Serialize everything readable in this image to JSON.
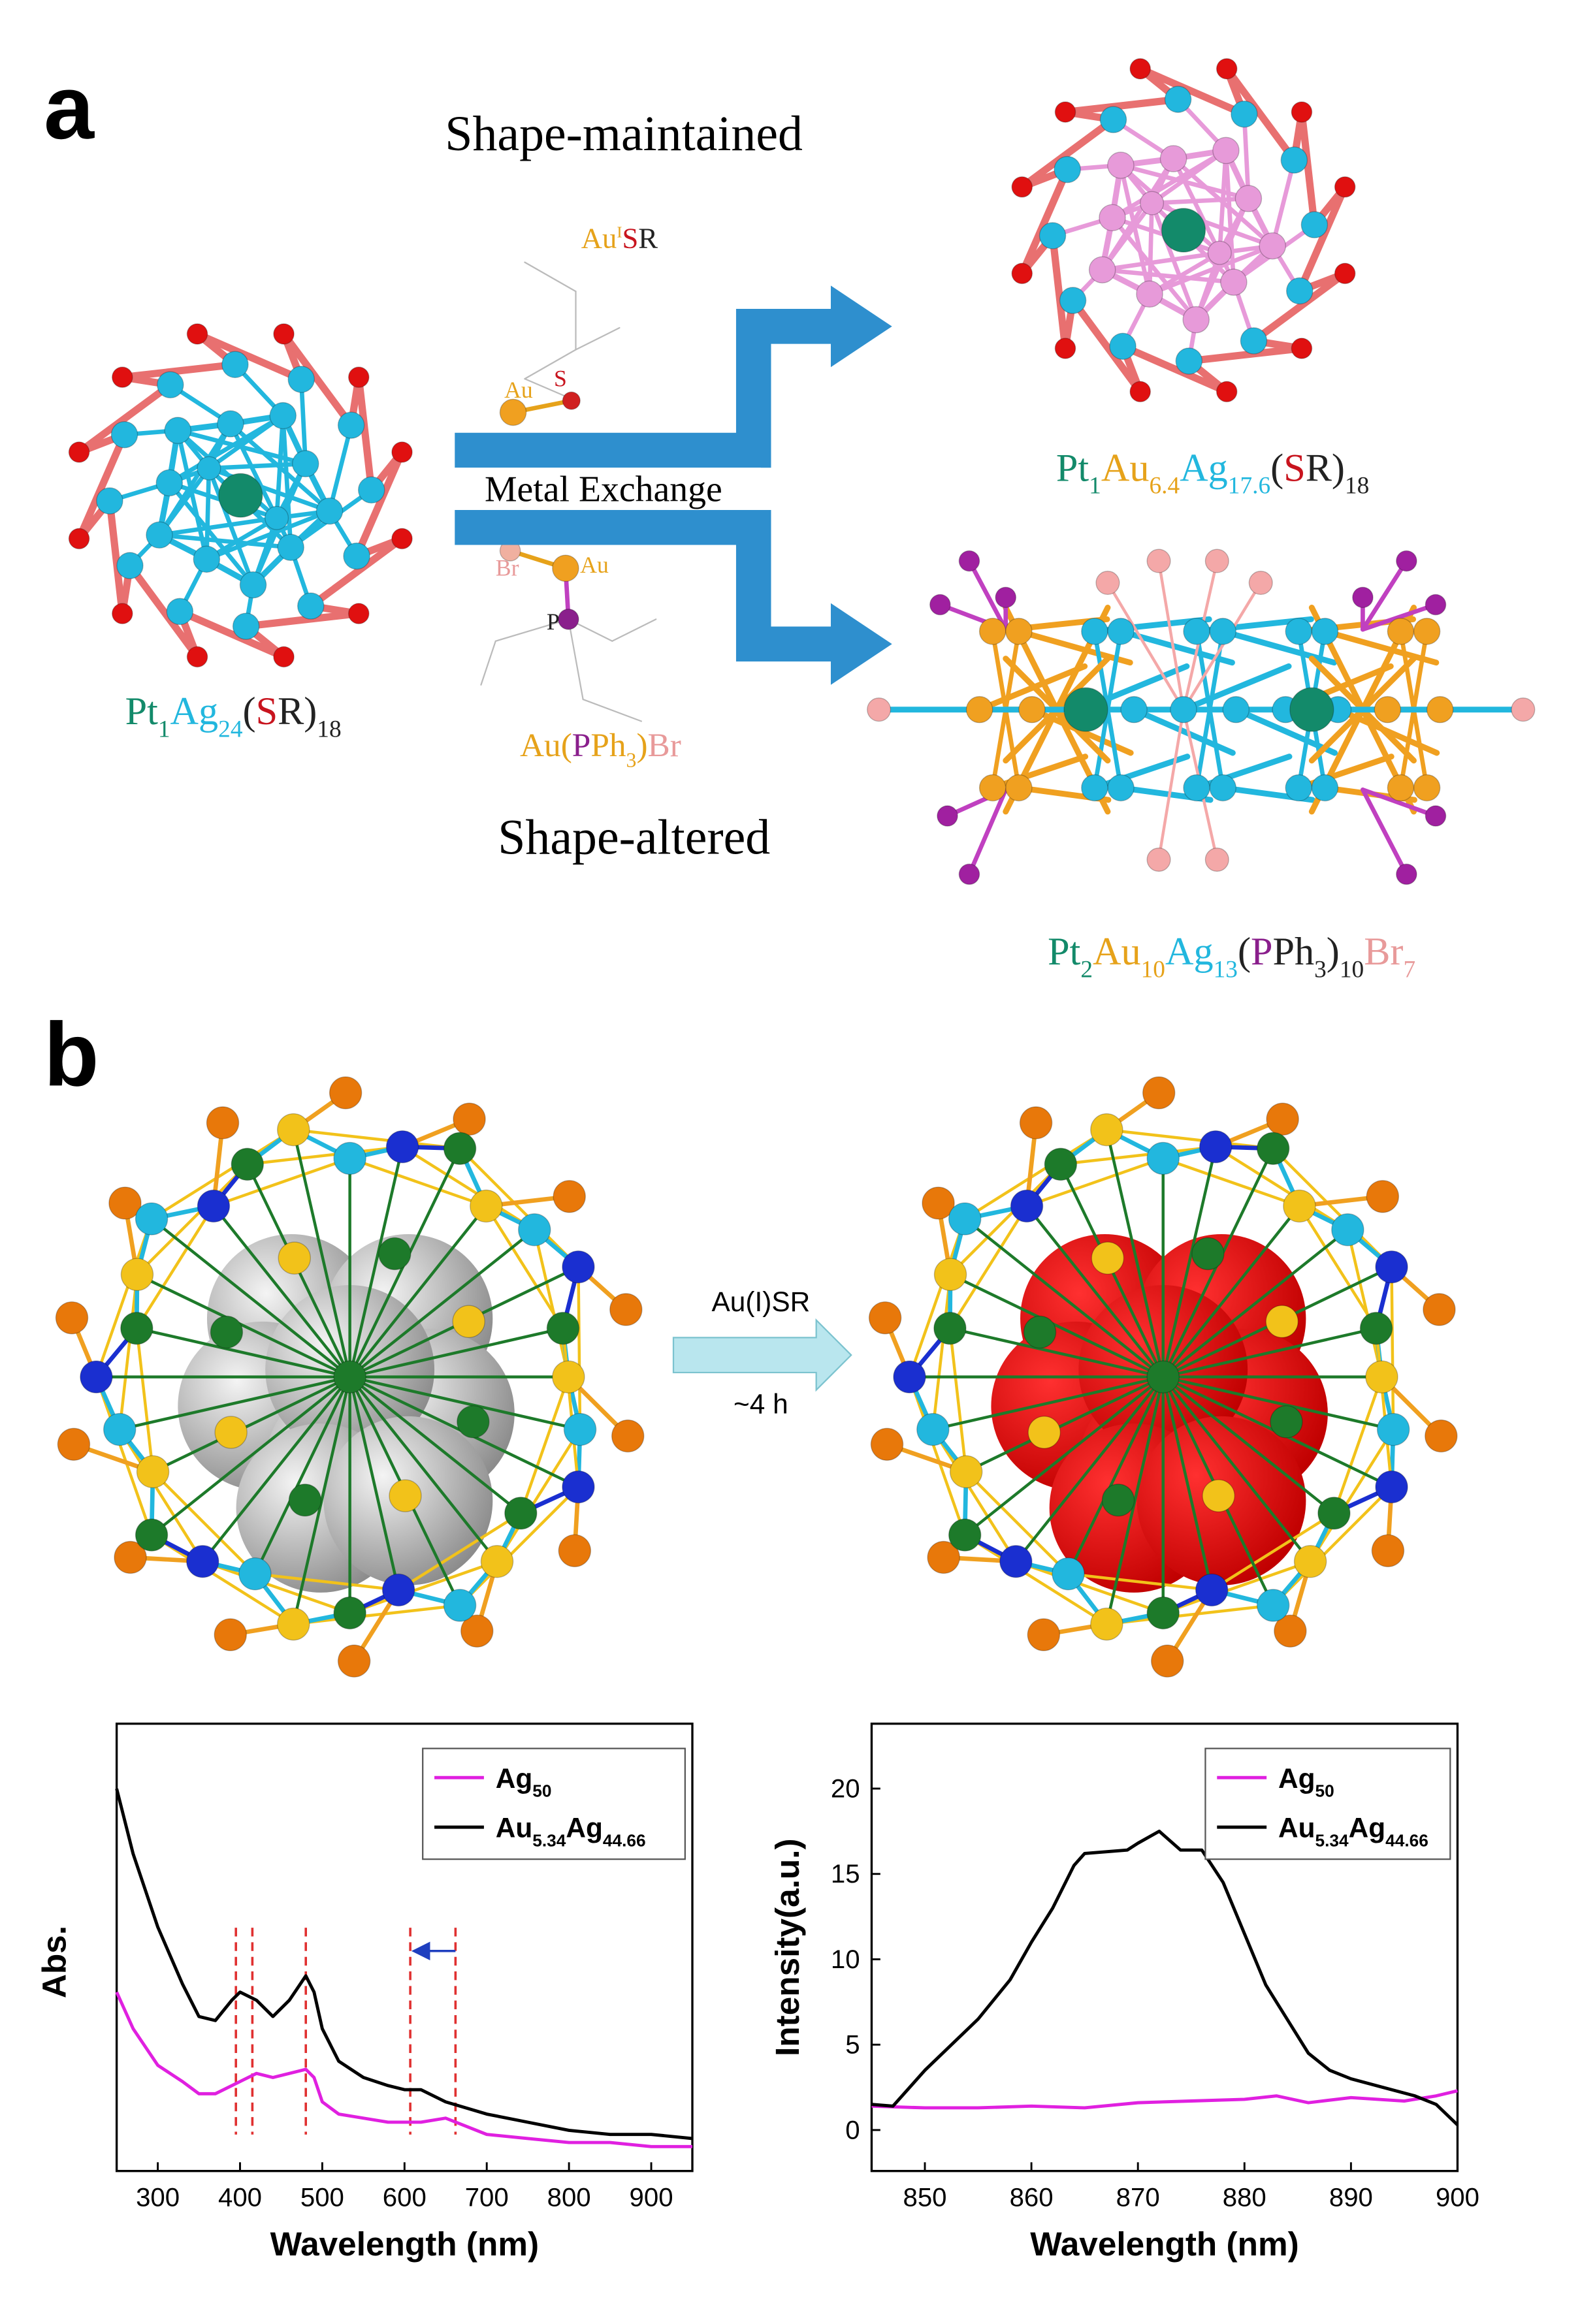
{
  "panel_a": {
    "label": "a",
    "top_title": "Shape-maintained",
    "bottom_title": "Shape-altered",
    "arrow_label": "Metal Exchange",
    "reagent_1": [
      {
        "text": "Au",
        "sup": "I",
        "color": "#e6a21a"
      },
      {
        "text": "S",
        "color": "#c8141e"
      },
      {
        "text": "R",
        "color": "#222222"
      }
    ],
    "reagent_1_atoms": [
      {
        "text": "Au",
        "color": "#e6a21a"
      },
      {
        "text": "S",
        "color": "#c8141e"
      }
    ],
    "reagent_2": [
      {
        "text": "Au(",
        "color": "#e6a21a"
      },
      {
        "text": "P",
        "color": "#8a1f8c"
      },
      {
        "text": "Ph",
        "sub": "3",
        "color": "#e6a21a"
      },
      {
        "text": ")",
        "color": "#e6a21a"
      },
      {
        "text": "Br",
        "color": "#e89a9a"
      }
    ],
    "reagent_2_atoms": [
      {
        "text": "Br",
        "color": "#e89a9a"
      },
      {
        "text": "Au",
        "color": "#e6a21a"
      },
      {
        "text": "P",
        "color": "#222222"
      }
    ],
    "start_formula": [
      {
        "text": "Pt",
        "sub": "1",
        "color": "#138a6a"
      },
      {
        "text": "Ag",
        "sub": "24",
        "color": "#22b7de"
      },
      {
        "text": "(",
        "color": "#222222"
      },
      {
        "text": "S",
        "color": "#c8141e"
      },
      {
        "text": "R)",
        "sub": "18",
        "color": "#222222"
      }
    ],
    "product_1": [
      {
        "text": "Pt",
        "sub": "1",
        "color": "#138a6a"
      },
      {
        "text": "Au",
        "sub": "6.4",
        "color": "#e6a21a"
      },
      {
        "text": "Ag",
        "sub": "17.6",
        "color": "#22b7de"
      },
      {
        "text": "(",
        "color": "#222222"
      },
      {
        "text": "S",
        "color": "#c8141e"
      },
      {
        "text": "R)",
        "sub": "18",
        "color": "#222222"
      }
    ],
    "product_2": [
      {
        "text": "Pt",
        "sub": "2",
        "color": "#138a6a"
      },
      {
        "text": "Au",
        "sub": "10",
        "color": "#e6a21a"
      },
      {
        "text": "Ag",
        "sub": "13",
        "color": "#22b7de"
      },
      {
        "text": "(",
        "color": "#222222"
      },
      {
        "text": "P",
        "color": "#8a1f8c"
      },
      {
        "text": "Ph",
        "sub": "3",
        "color": "#222222"
      },
      {
        "text": ")",
        "sub": "10",
        "color": "#222222"
      },
      {
        "text": "Br",
        "sub": "7",
        "color": "#e89a9a"
      }
    ]
  },
  "panel_b": {
    "label": "b",
    "arrow_top": "Au(I)SR",
    "arrow_bottom": "~4 h"
  },
  "chart_data": [
    {
      "type": "line",
      "xlabel": "Wavelength (nm)",
      "ylabel": "Abs.",
      "xlim": [
        250,
        950
      ],
      "xticks": [
        300,
        400,
        500,
        600,
        700,
        800,
        900
      ],
      "ylim": [
        0,
        1.1
      ],
      "legend": "upper right",
      "vlines": [
        395,
        415,
        480,
        607,
        662
      ],
      "vline_color": "#e03030",
      "shift_arrow": {
        "from": 662,
        "to": 607,
        "color": "#1f3fbf"
      },
      "series": [
        {
          "name": [
            {
              "text": "Ag",
              "sub": "50"
            }
          ],
          "color": "#e020e0",
          "x": [
            250,
            270,
            300,
            330,
            350,
            370,
            390,
            400,
            420,
            440,
            460,
            480,
            490,
            500,
            520,
            550,
            580,
            600,
            620,
            650,
            700,
            750,
            800,
            850,
            900,
            950
          ],
          "values": [
            0.44,
            0.35,
            0.26,
            0.22,
            0.19,
            0.19,
            0.21,
            0.22,
            0.24,
            0.23,
            0.24,
            0.25,
            0.23,
            0.17,
            0.14,
            0.13,
            0.12,
            0.12,
            0.12,
            0.13,
            0.09,
            0.08,
            0.07,
            0.07,
            0.06,
            0.06
          ]
        },
        {
          "name": [
            {
              "text": "Au",
              "sub": "5.34"
            },
            {
              "text": "Ag",
              "sub": "44.66"
            }
          ],
          "color": "#000000",
          "x": [
            250,
            270,
            300,
            330,
            350,
            370,
            390,
            400,
            420,
            440,
            460,
            480,
            490,
            500,
            520,
            550,
            580,
            600,
            620,
            650,
            700,
            750,
            800,
            850,
            900,
            950
          ],
          "values": [
            0.94,
            0.78,
            0.6,
            0.46,
            0.38,
            0.37,
            0.42,
            0.44,
            0.42,
            0.38,
            0.42,
            0.48,
            0.44,
            0.35,
            0.27,
            0.23,
            0.21,
            0.2,
            0.2,
            0.17,
            0.14,
            0.12,
            0.1,
            0.09,
            0.09,
            0.08
          ]
        }
      ]
    },
    {
      "type": "line",
      "xlabel": "Wavelength (nm)",
      "ylabel": "Intensity(a.u.)",
      "xlim": [
        845,
        900
      ],
      "xticks": [
        850,
        860,
        870,
        880,
        890,
        900
      ],
      "ylim": [
        -2.4,
        23.8
      ],
      "yticks": [
        0,
        5,
        10,
        15,
        20
      ],
      "legend": "upper right",
      "series": [
        {
          "name": [
            {
              "text": "Ag",
              "sub": "50"
            }
          ],
          "color": "#e020e0",
          "x": [
            845,
            850,
            855,
            860,
            865,
            870,
            875,
            880,
            883,
            886,
            890,
            895,
            898,
            900
          ],
          "values": [
            1.4,
            1.3,
            1.3,
            1.4,
            1.3,
            1.6,
            1.7,
            1.8,
            2.0,
            1.6,
            1.9,
            1.7,
            2.0,
            2.3
          ]
        },
        {
          "name": [
            {
              "text": "Au",
              "sub": "5.34"
            },
            {
              "text": "Ag",
              "sub": "44.66"
            }
          ],
          "color": "#000000",
          "x": [
            845,
            847,
            850,
            853,
            855,
            858,
            860,
            862,
            864,
            865,
            867,
            869,
            870,
            872,
            874,
            876,
            878,
            880,
            882,
            884,
            886,
            888,
            890,
            893,
            896,
            898,
            900
          ],
          "values": [
            1.5,
            1.4,
            3.5,
            5.3,
            6.5,
            8.8,
            11,
            13,
            15.5,
            16.2,
            16.3,
            16.4,
            16.8,
            17.5,
            16.4,
            16.4,
            14.5,
            11.5,
            8.5,
            6.5,
            4.5,
            3.5,
            3,
            2.5,
            2,
            1.5,
            0.3
          ]
        }
      ]
    }
  ]
}
